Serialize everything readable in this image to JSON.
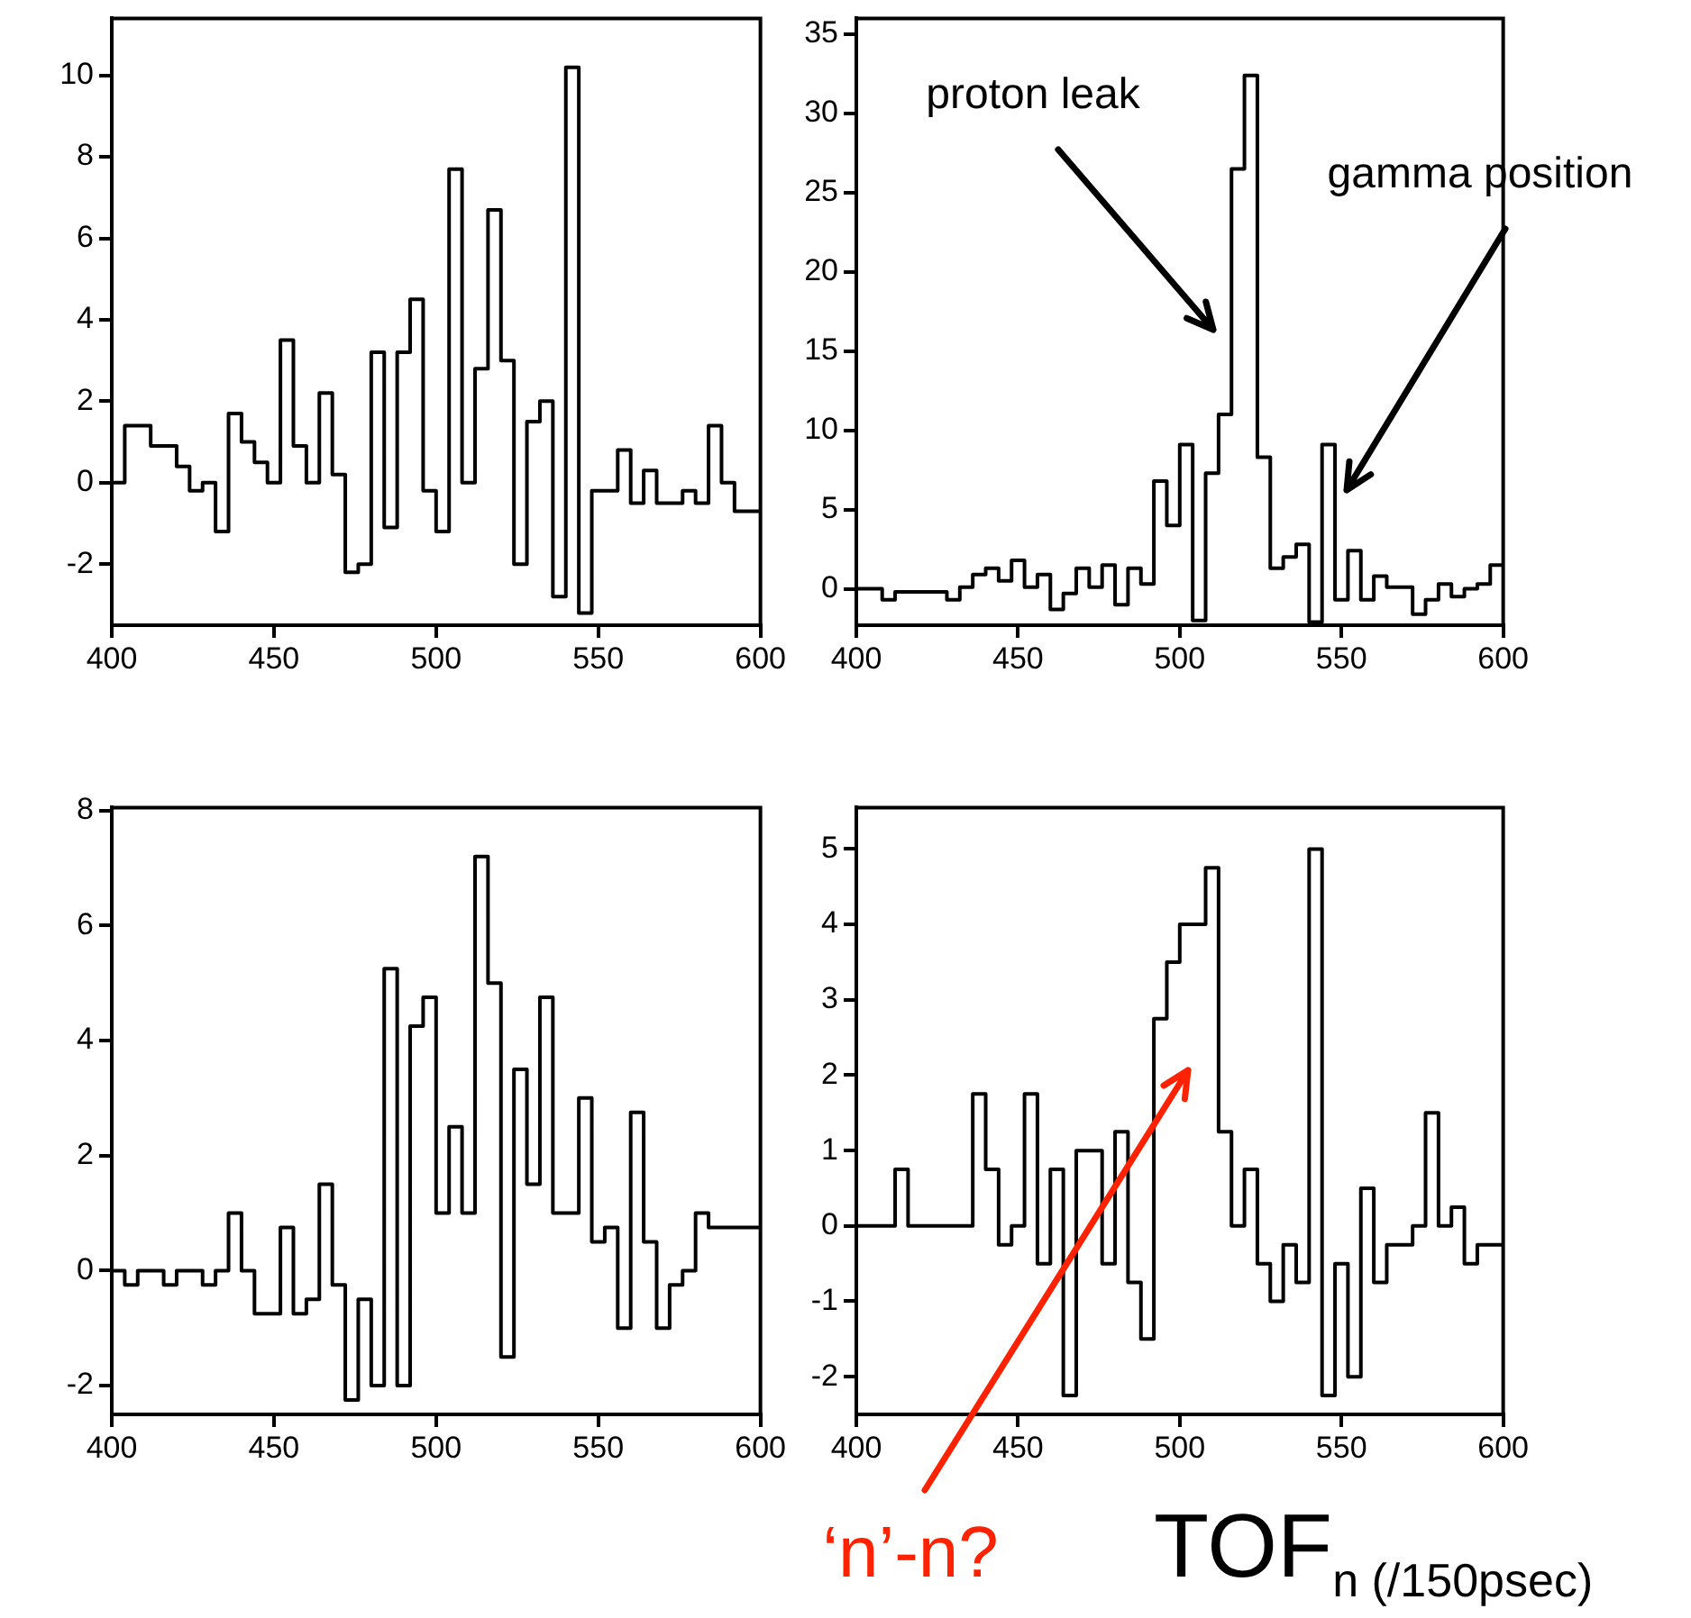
{
  "chart_data": [
    {
      "type": "histogram",
      "bins": [
        400,
        404,
        408,
        412,
        416,
        420,
        424,
        428,
        432,
        436,
        440,
        444,
        448,
        452,
        456,
        460,
        464,
        468,
        472,
        476,
        480,
        484,
        488,
        492,
        496,
        500,
        504,
        508,
        512,
        516,
        520,
        524,
        528,
        532,
        536,
        540,
        544,
        548,
        552,
        556,
        560,
        564,
        568,
        572,
        576,
        580,
        584,
        588,
        592,
        596,
        600
      ],
      "values": [
        0,
        1.4,
        1.4,
        0.9,
        0.9,
        0.4,
        -0.2,
        0,
        -1.2,
        1.7,
        1.0,
        0.5,
        0,
        3.5,
        0.9,
        0,
        2.2,
        0.2,
        -2.2,
        -2.0,
        3.2,
        -1.1,
        3.2,
        4.5,
        -0.2,
        -1.2,
        7.7,
        0,
        2.8,
        6.7,
        3.0,
        -2.0,
        1.5,
        2.0,
        -2.8,
        10.2,
        -3.2,
        -0.2,
        -0.2,
        0.8,
        -0.5,
        0.3,
        -0.5,
        -0.5,
        -0.2,
        -0.5,
        1.4,
        0,
        -0.7,
        -0.7
      ],
      "color": "#000000",
      "xlim": [
        400,
        600
      ],
      "xticks": [
        400,
        450,
        500,
        550,
        600
      ],
      "ylim": [
        -3.5,
        11.4
      ],
      "yticks": [
        -2,
        0,
        2,
        4,
        6,
        8,
        10
      ]
    },
    {
      "type": "histogram",
      "bins": [
        400,
        404,
        408,
        412,
        416,
        420,
        424,
        428,
        432,
        436,
        440,
        444,
        448,
        452,
        456,
        460,
        464,
        468,
        472,
        476,
        480,
        484,
        488,
        492,
        496,
        500,
        504,
        508,
        512,
        516,
        520,
        524,
        528,
        532,
        536,
        540,
        544,
        548,
        552,
        556,
        560,
        564,
        568,
        572,
        576,
        580,
        584,
        588,
        592,
        596,
        600
      ],
      "values": [
        0,
        0,
        -0.7,
        -0.2,
        -0.2,
        -0.2,
        -0.2,
        -0.7,
        0.1,
        0.9,
        1.3,
        0.5,
        1.8,
        0.1,
        0.9,
        -1.3,
        -0.3,
        1.3,
        0.1,
        1.5,
        -1.0,
        1.3,
        0.3,
        6.8,
        4.0,
        9.1,
        -2.0,
        7.3,
        11.0,
        26.5,
        32.4,
        8.3,
        1.3,
        2.0,
        2.8,
        -2.1,
        9.1,
        -0.7,
        2.4,
        -0.7,
        0.8,
        0.1,
        0.1,
        -1.6,
        -0.7,
        0.3,
        -0.5,
        0,
        0.3,
        1.5
      ],
      "color": "#000000",
      "xlim": [
        400,
        600
      ],
      "xticks": [
        400,
        450,
        500,
        550,
        600
      ],
      "ylim": [
        -2.3,
        36
      ],
      "yticks": [
        0,
        5,
        10,
        15,
        20,
        25,
        30,
        35
      ],
      "annotations": [
        "proton leak",
        "gamma position"
      ]
    },
    {
      "type": "histogram",
      "bins": [
        400,
        404,
        408,
        412,
        416,
        420,
        424,
        428,
        432,
        436,
        440,
        444,
        448,
        452,
        456,
        460,
        464,
        468,
        472,
        476,
        480,
        484,
        488,
        492,
        496,
        500,
        504,
        508,
        512,
        516,
        520,
        524,
        528,
        532,
        536,
        540,
        544,
        548,
        552,
        556,
        560,
        564,
        568,
        572,
        576,
        580,
        584,
        588,
        592,
        596,
        600
      ],
      "values": [
        0,
        -0.25,
        0,
        0,
        -0.25,
        0,
        0,
        -0.25,
        0,
        1.0,
        0,
        -0.75,
        -0.75,
        0.75,
        -0.75,
        -0.5,
        1.5,
        -0.25,
        -2.25,
        -0.5,
        -2,
        5.25,
        -2,
        4.25,
        4.75,
        1,
        2.5,
        1,
        7.2,
        5,
        -1.5,
        3.5,
        1.5,
        4.75,
        1,
        1,
        3,
        0.5,
        0.75,
        -1,
        2.75,
        0.5,
        -1,
        -0.25,
        0,
        1,
        0.75,
        0.75,
        0.75,
        0.75
      ],
      "color": "#000000",
      "xlim": [
        400,
        600
      ],
      "xticks": [
        400,
        450,
        500,
        550,
        600
      ],
      "ylim": [
        -2.5,
        8.05
      ],
      "yticks": [
        -2,
        0,
        2,
        4,
        6,
        8
      ]
    },
    {
      "type": "histogram",
      "bins": [
        400,
        404,
        408,
        412,
        416,
        420,
        424,
        428,
        432,
        436,
        440,
        444,
        448,
        452,
        456,
        460,
        464,
        468,
        472,
        476,
        480,
        484,
        488,
        492,
        496,
        500,
        504,
        508,
        512,
        516,
        520,
        524,
        528,
        532,
        536,
        540,
        544,
        548,
        552,
        556,
        560,
        564,
        568,
        572,
        576,
        580,
        584,
        588,
        592,
        596,
        600
      ],
      "values": [
        0,
        0,
        0,
        0.75,
        0,
        0,
        0,
        0,
        0,
        1.75,
        0.75,
        -0.25,
        0,
        1.75,
        -0.5,
        0.75,
        -2.25,
        1.0,
        1.0,
        -0.5,
        1.25,
        -0.75,
        -1.5,
        2.75,
        3.5,
        4.0,
        4.0,
        4.75,
        1.25,
        0,
        0.75,
        -0.5,
        -1.0,
        -0.25,
        -0.75,
        5.0,
        -2.25,
        -0.5,
        -2,
        0.5,
        -0.75,
        -0.25,
        -0.25,
        0,
        1.5,
        0,
        0.25,
        -0.5,
        -0.25,
        -0.25
      ],
      "color": "#000000",
      "xlim": [
        400,
        600
      ],
      "xticks": [
        400,
        450,
        500,
        550,
        600
      ],
      "ylim": [
        -2.5,
        5.55
      ],
      "yticks": [
        -2,
        -1,
        0,
        1,
        2,
        3,
        4,
        5
      ],
      "xlabel": "TOF$_{n (/150psec)}$",
      "annotations": [
        "‘n’-n?"
      ]
    }
  ]
}
